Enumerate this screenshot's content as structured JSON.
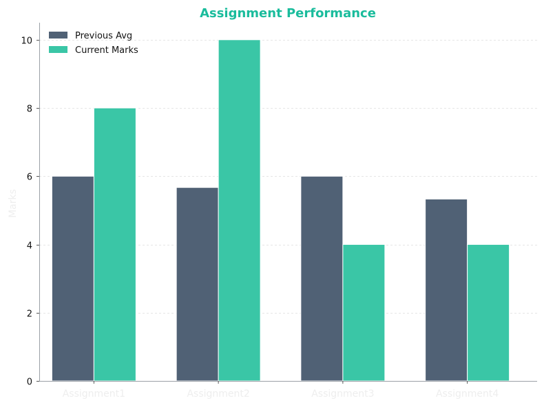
{
  "chart_data": {
    "type": "bar",
    "title": "Assignment Performance",
    "xlabel": "",
    "ylabel": "Marks",
    "categories": [
      "Assignment1",
      "Assignment2",
      "Assignment3",
      "Assignment4"
    ],
    "series": [
      {
        "name": "Previous Avg",
        "values": [
          6,
          5.67,
          6,
          5.33
        ],
        "color": "#506175"
      },
      {
        "name": "Current Marks",
        "values": [
          8,
          10,
          4,
          4
        ],
        "color": "#3ac6a6"
      }
    ],
    "ylim": [
      0,
      10.5
    ],
    "yticks": [
      "0",
      "2",
      "4",
      "6",
      "8",
      "10"
    ],
    "grid": true,
    "legend_position": "top-left",
    "title_color": "#1abc9c"
  }
}
